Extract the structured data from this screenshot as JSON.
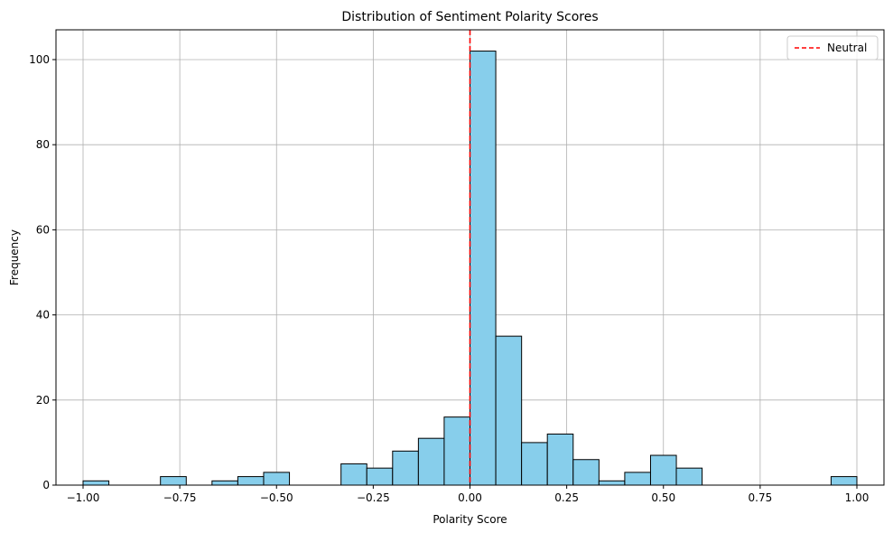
{
  "chart_data": {
    "type": "bar",
    "title": "Distribution of Sentiment Polarity Scores",
    "xlabel": "Polarity Score",
    "ylabel": "Frequency",
    "xlim": [
      -1.07,
      1.07
    ],
    "ylim": [
      0,
      107
    ],
    "grid": true,
    "x_ticks": [
      -1.0,
      -0.75,
      -0.5,
      -0.25,
      0.0,
      0.25,
      0.5,
      0.75,
      1.0
    ],
    "x_tick_labels": [
      "−1.00",
      "−0.75",
      "−0.50",
      "−0.25",
      "0.00",
      "0.25",
      "0.50",
      "0.75",
      "1.00"
    ],
    "y_ticks": [
      0,
      20,
      40,
      60,
      80,
      100
    ],
    "y_tick_labels": [
      "0",
      "20",
      "40",
      "60",
      "80",
      "100"
    ],
    "bin_width": 0.0667,
    "bins": [
      {
        "x_start": -1.0,
        "value": 1
      },
      {
        "x_start": -0.9333,
        "value": 0
      },
      {
        "x_start": -0.8667,
        "value": 0
      },
      {
        "x_start": -0.8,
        "value": 2
      },
      {
        "x_start": -0.7333,
        "value": 0
      },
      {
        "x_start": -0.6667,
        "value": 1
      },
      {
        "x_start": -0.6,
        "value": 2
      },
      {
        "x_start": -0.5333,
        "value": 3
      },
      {
        "x_start": -0.4667,
        "value": 0
      },
      {
        "x_start": -0.4,
        "value": 0
      },
      {
        "x_start": -0.3333,
        "value": 5
      },
      {
        "x_start": -0.2667,
        "value": 4
      },
      {
        "x_start": -0.2,
        "value": 8
      },
      {
        "x_start": -0.1333,
        "value": 11
      },
      {
        "x_start": -0.0667,
        "value": 16
      },
      {
        "x_start": 0.0,
        "value": 102
      },
      {
        "x_start": 0.0667,
        "value": 35
      },
      {
        "x_start": 0.1333,
        "value": 10
      },
      {
        "x_start": 0.2,
        "value": 12
      },
      {
        "x_start": 0.2667,
        "value": 6
      },
      {
        "x_start": 0.3333,
        "value": 1
      },
      {
        "x_start": 0.4,
        "value": 3
      },
      {
        "x_start": 0.4667,
        "value": 7
      },
      {
        "x_start": 0.5333,
        "value": 4
      },
      {
        "x_start": 0.6,
        "value": 0
      },
      {
        "x_start": 0.6667,
        "value": 0
      },
      {
        "x_start": 0.7333,
        "value": 0
      },
      {
        "x_start": 0.8,
        "value": 0
      },
      {
        "x_start": 0.8667,
        "value": 0
      },
      {
        "x_start": 0.9333,
        "value": 2
      }
    ],
    "bar_color": "#87ceeb",
    "bar_edge_color": "#000000",
    "reference_line": {
      "x": 0.0,
      "label": "Neutral",
      "color": "#ff0000",
      "style": "dashed"
    },
    "legend": {
      "placement": "top-right",
      "entries": [
        "Neutral"
      ]
    }
  }
}
